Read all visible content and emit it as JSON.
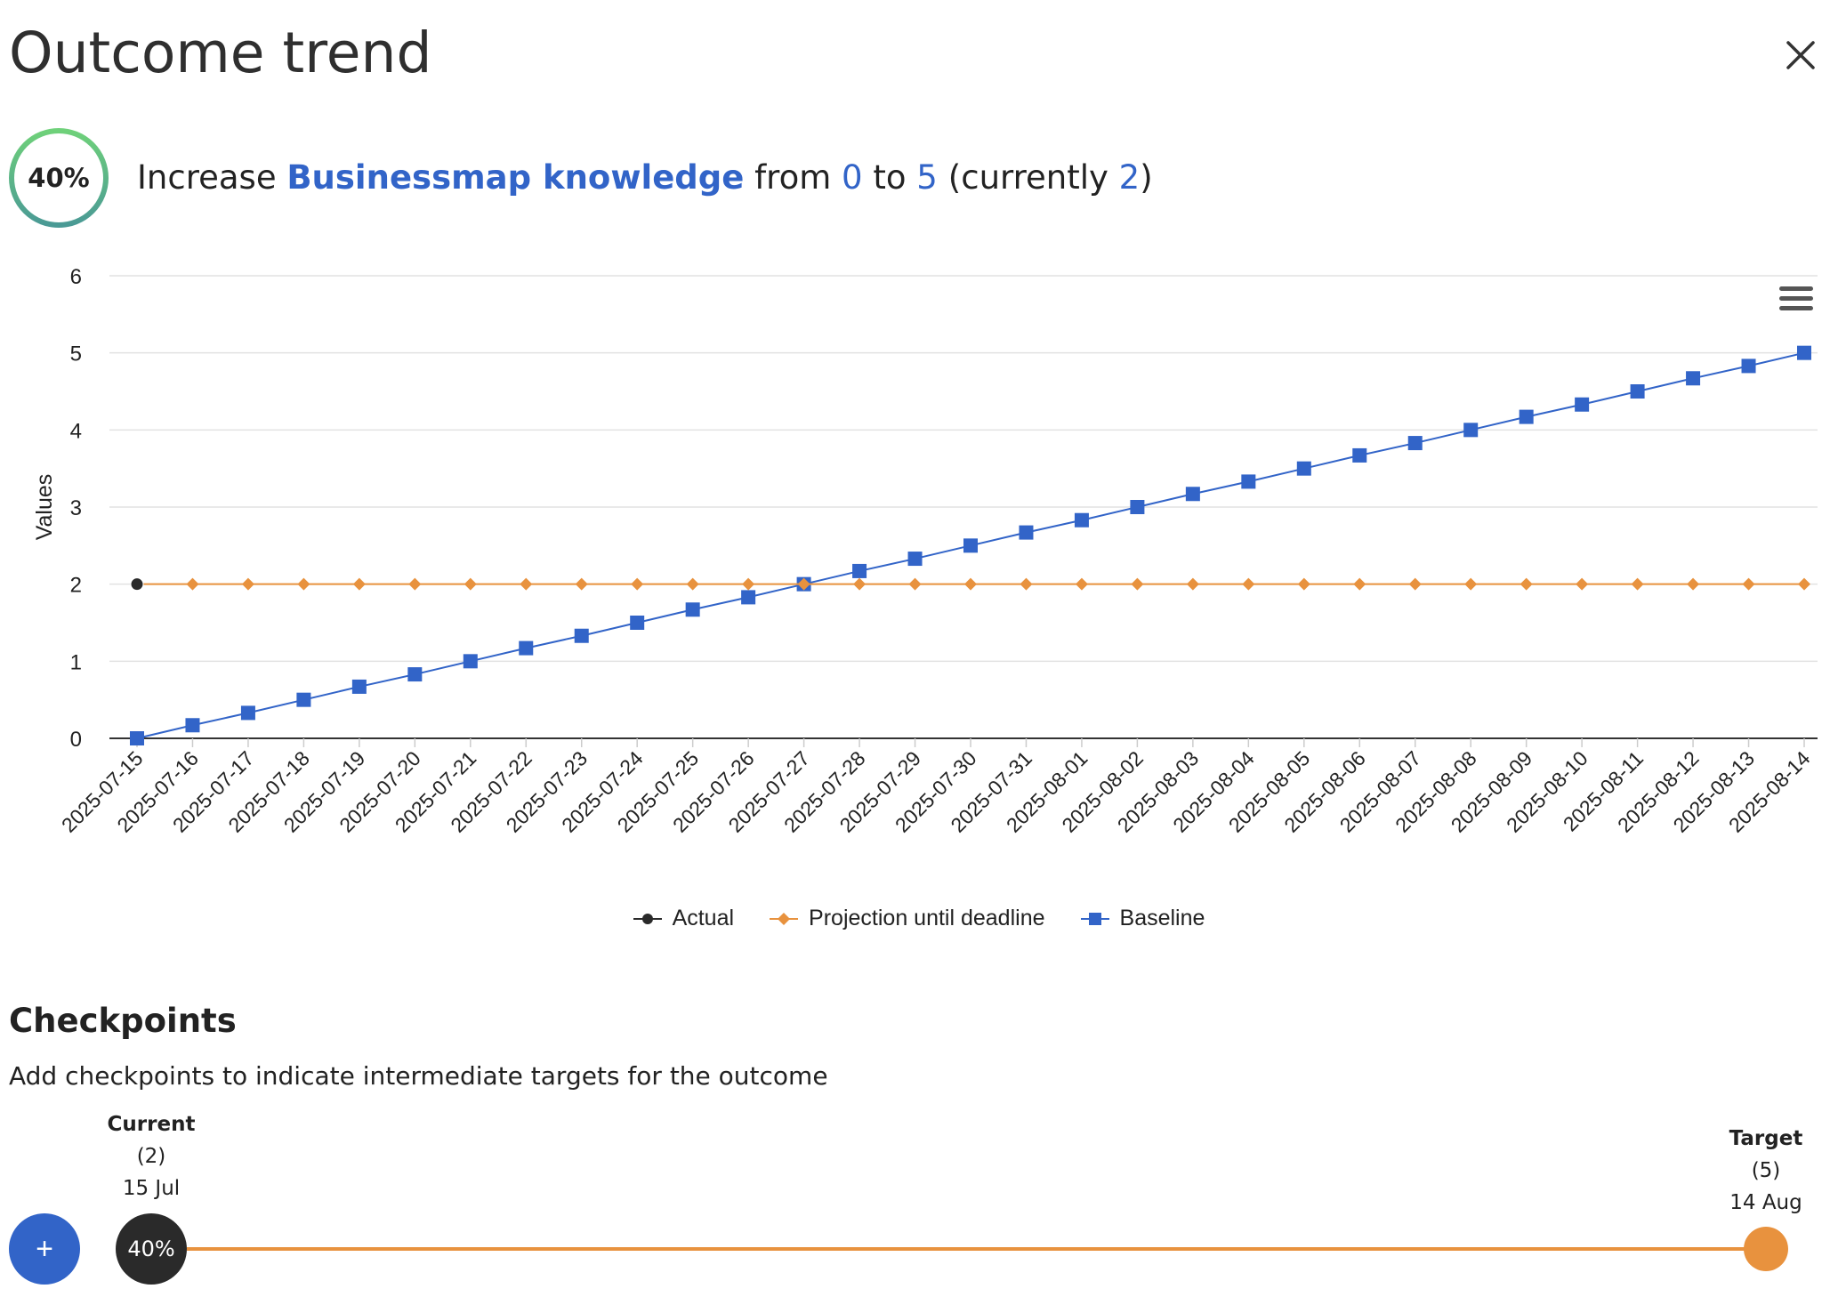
{
  "header": {
    "title": "Outcome trend",
    "close_icon": "close-icon"
  },
  "outcome": {
    "progress_label": "40%",
    "progress": 0.4,
    "verb": "Increase",
    "metric": "Businessmap knowledge",
    "from_word": "from",
    "start_value": "0",
    "to_word": "to",
    "target_value": "5",
    "currently_open": "(currently",
    "current_value": "2",
    "currently_close": ")"
  },
  "colors": {
    "accent_blue": "#3264c8",
    "projection_orange": "#e8923e",
    "actual_black": "#2a2a2a",
    "ring_green": "#6fd17a",
    "ring_teal": "#4a9a95"
  },
  "chart_data": {
    "type": "line",
    "ylabel": "Values",
    "ylim": [
      0,
      6
    ],
    "yticks": [
      0,
      1,
      2,
      3,
      4,
      5,
      6
    ],
    "grid": true,
    "legend_position": "bottom-center",
    "x": [
      "2025-07-15",
      "2025-07-16",
      "2025-07-17",
      "2025-07-18",
      "2025-07-19",
      "2025-07-20",
      "2025-07-21",
      "2025-07-22",
      "2025-07-23",
      "2025-07-24",
      "2025-07-25",
      "2025-07-26",
      "2025-07-27",
      "2025-07-28",
      "2025-07-29",
      "2025-07-30",
      "2025-07-31",
      "2025-08-01",
      "2025-08-02",
      "2025-08-03",
      "2025-08-04",
      "2025-08-05",
      "2025-08-06",
      "2025-08-07",
      "2025-08-08",
      "2025-08-09",
      "2025-08-10",
      "2025-08-11",
      "2025-08-12",
      "2025-08-13",
      "2025-08-14"
    ],
    "series": [
      {
        "name": "Actual",
        "color": "#2a2a2a",
        "marker": "circle",
        "values": [
          2,
          null,
          null,
          null,
          null,
          null,
          null,
          null,
          null,
          null,
          null,
          null,
          null,
          null,
          null,
          null,
          null,
          null,
          null,
          null,
          null,
          null,
          null,
          null,
          null,
          null,
          null,
          null,
          null,
          null,
          null
        ]
      },
      {
        "name": "Projection until deadline",
        "color": "#e8923e",
        "marker": "diamond",
        "values": [
          2,
          2,
          2,
          2,
          2,
          2,
          2,
          2,
          2,
          2,
          2,
          2,
          2,
          2,
          2,
          2,
          2,
          2,
          2,
          2,
          2,
          2,
          2,
          2,
          2,
          2,
          2,
          2,
          2,
          2,
          2
        ]
      },
      {
        "name": "Baseline",
        "color": "#3264c8",
        "marker": "square",
        "values": [
          0,
          0.17,
          0.33,
          0.5,
          0.67,
          0.83,
          1,
          1.17,
          1.33,
          1.5,
          1.67,
          1.83,
          2,
          2.17,
          2.33,
          2.5,
          2.67,
          2.83,
          3,
          3.17,
          3.33,
          3.5,
          3.67,
          3.83,
          4,
          4.17,
          4.33,
          4.5,
          4.67,
          4.83,
          5
        ]
      }
    ]
  },
  "checkpoints": {
    "title": "Checkpoints",
    "description": "Add checkpoints to indicate intermediate targets for the outcome",
    "add_label": "+",
    "current": {
      "title": "Current",
      "value": "(2)",
      "date": "15 Jul",
      "progress_label": "40%"
    },
    "target": {
      "title": "Target",
      "value": "(5)",
      "date": "14 Aug"
    }
  }
}
